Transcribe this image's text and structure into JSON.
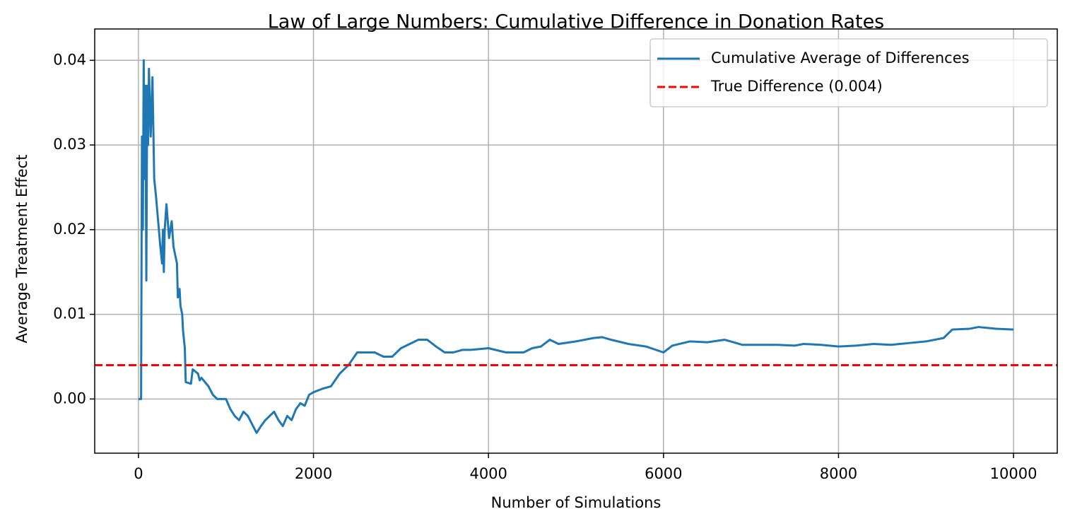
{
  "chart_data": {
    "type": "line",
    "title": "Law of Large Numbers: Cumulative Difference in Donation Rates",
    "x_label": "Number of Simulations",
    "y_label": "Average Treatment Effect",
    "x": [
      0,
      30,
      40,
      50,
      60,
      70,
      80,
      90,
      100,
      110,
      120,
      140,
      160,
      170,
      180,
      200,
      250,
      270,
      280,
      290,
      300,
      320,
      350,
      380,
      400,
      440,
      450,
      470,
      480,
      500,
      510,
      530,
      540,
      600,
      620,
      680,
      700,
      720,
      800,
      850,
      900,
      1000,
      1050,
      1100,
      1150,
      1200,
      1250,
      1300,
      1350,
      1400,
      1450,
      1500,
      1550,
      1600,
      1650,
      1700,
      1750,
      1800,
      1850,
      1900,
      1950,
      2000,
      2100,
      2200,
      2300,
      2400,
      2500,
      2600,
      2700,
      2800,
      2900,
      3000,
      3200,
      3300,
      3400,
      3500,
      3600,
      3700,
      3800,
      4000,
      4200,
      4400,
      4500,
      4600,
      4700,
      4800,
      5000,
      5200,
      5300,
      5400,
      5600,
      5800,
      6000,
      6100,
      6300,
      6500,
      6700,
      6900,
      7100,
      7300,
      7500,
      7600,
      7800,
      8000,
      8200,
      8400,
      8600,
      8800,
      9000,
      9200,
      9300,
      9500,
      9600,
      9800,
      10000
    ],
    "series": [
      {
        "name": "Cumulative Average of Differences",
        "color": "#1f77b4",
        "values": [
          0,
          0,
          0.031,
          0.02,
          0.04,
          0.026,
          0.037,
          0.014,
          0.037,
          0.03,
          0.039,
          0.031,
          0.038,
          0.032,
          0.026,
          0.024,
          0.018,
          0.016,
          0.02,
          0.015,
          0.02,
          0.023,
          0.019,
          0.021,
          0.018,
          0.016,
          0.012,
          0.013,
          0.011,
          0.01,
          0.008,
          0.006,
          0.002,
          0.0018,
          0.0035,
          0.003,
          0.0022,
          0.0025,
          0.0015,
          0.0005,
          0,
          0,
          -0.0012,
          -0.002,
          -0.0025,
          -0.0015,
          -0.002,
          -0.003,
          -0.004,
          -0.0032,
          -0.0025,
          -0.002,
          -0.0015,
          -0.0025,
          -0.0032,
          -0.002,
          -0.0025,
          -0.0012,
          -0.0005,
          -0.0008,
          0.0005,
          0.0008,
          0.0012,
          0.0015,
          0.003,
          0.004,
          0.0055,
          0.0055,
          0.0055,
          0.005,
          0.005,
          0.006,
          0.007,
          0.007,
          0.0062,
          0.0055,
          0.0055,
          0.0058,
          0.0058,
          0.006,
          0.0055,
          0.0055,
          0.006,
          0.0062,
          0.007,
          0.0065,
          0.0068,
          0.0072,
          0.0073,
          0.007,
          0.0065,
          0.0062,
          0.0055,
          0.0063,
          0.0068,
          0.0067,
          0.007,
          0.0064,
          0.0064,
          0.0064,
          0.0063,
          0.0065,
          0.0064,
          0.0062,
          0.0063,
          0.0065,
          0.0064,
          0.0066,
          0.0068,
          0.0072,
          0.0082,
          0.0083,
          0.0085,
          0.0083,
          0.0082
        ]
      }
    ],
    "reference_lines": [
      {
        "name": "True Difference (0.004)",
        "value": 0.004,
        "color": "#ff0000",
        "style": "dashed"
      }
    ],
    "xlim": [
      -500,
      10500
    ],
    "ylim": [
      -0.0064,
      0.0437
    ],
    "xticks": [
      0,
      2000,
      4000,
      6000,
      8000,
      10000
    ],
    "yticks": [
      {
        "value": 0,
        "label": "0.00"
      },
      0.01,
      0.02,
      0.03,
      0.04
    ],
    "grid": true,
    "legend": "upper right"
  }
}
